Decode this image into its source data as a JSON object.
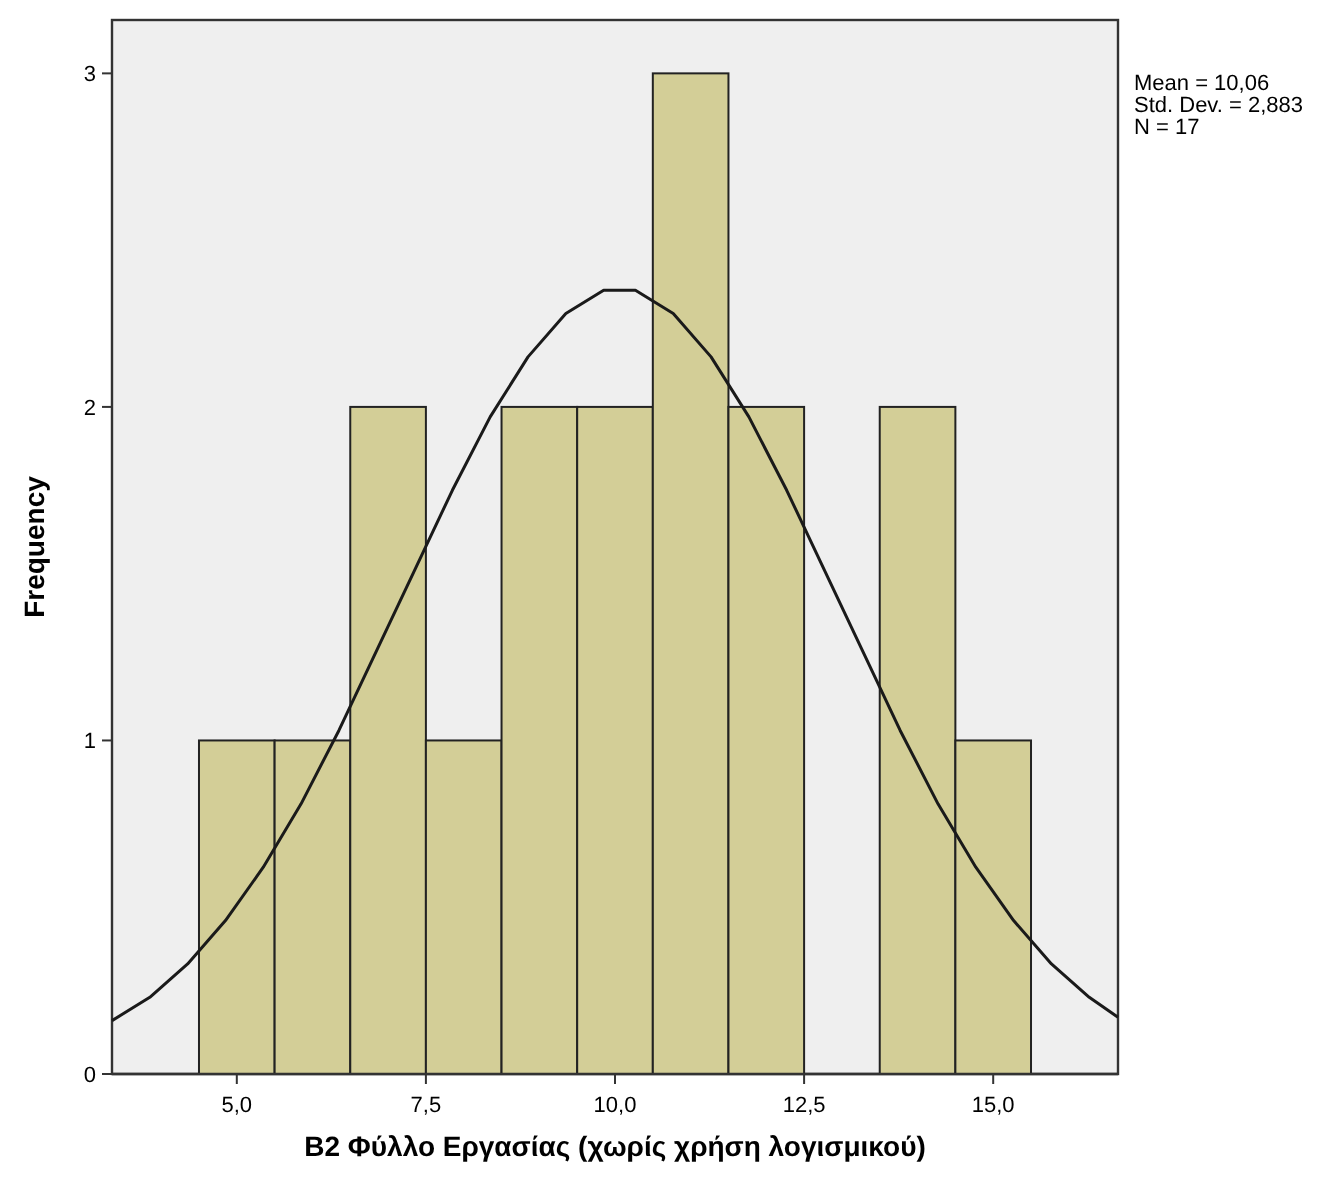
{
  "chart_data": {
    "type": "histogram",
    "xlabel": "B2 Φύλλο Εργασίας (χωρίς χρήση λογισμικού)",
    "ylabel": "Frequency",
    "bins": [
      4.5,
      5.5,
      6.5,
      7.5,
      8.5,
      9.5,
      10.5,
      11.5,
      12.5,
      13.5,
      14.5,
      15.5
    ],
    "values": [
      1,
      1,
      2,
      1,
      2,
      2,
      3,
      2,
      0,
      2,
      1
    ],
    "color": "#d3ce97",
    "series": [
      {
        "type": "line",
        "color": "#1a1a1a",
        "x": [
          3.35,
          3.85,
          4.35,
          4.85,
          5.35,
          5.85,
          6.35,
          6.85,
          7.35,
          7.85,
          8.35,
          8.85,
          9.35,
          9.85,
          10.06,
          10.27,
          10.77,
          11.27,
          11.77,
          12.27,
          12.77,
          13.27,
          13.77,
          14.27,
          14.77,
          15.27,
          15.77,
          16.27,
          16.65
        ],
        "values": [
          0.16,
          0.23,
          0.33,
          0.46,
          0.62,
          0.81,
          1.03,
          1.27,
          1.51,
          1.75,
          1.97,
          2.15,
          2.28,
          2.35,
          2.35,
          2.35,
          2.28,
          2.15,
          1.97,
          1.75,
          1.51,
          1.27,
          1.03,
          0.81,
          0.62,
          0.46,
          0.33,
          0.23,
          0.17
        ]
      }
    ],
    "xlim": [
      3.35,
      16.65
    ],
    "ylim": [
      0,
      3.16
    ],
    "xticks": [
      {
        "value": 5,
        "label": "5,0"
      },
      {
        "value": 7.5,
        "label": "7,5"
      },
      {
        "value": 10,
        "label": "10,0"
      },
      {
        "value": 12.5,
        "label": "12,5"
      },
      {
        "value": 15,
        "label": "15,0"
      }
    ],
    "yticks": [
      0,
      1,
      2,
      3
    ],
    "annotations": [
      "Mean = 10,06",
      "Std. Dev. = 2,883",
      "N = 17"
    ]
  }
}
